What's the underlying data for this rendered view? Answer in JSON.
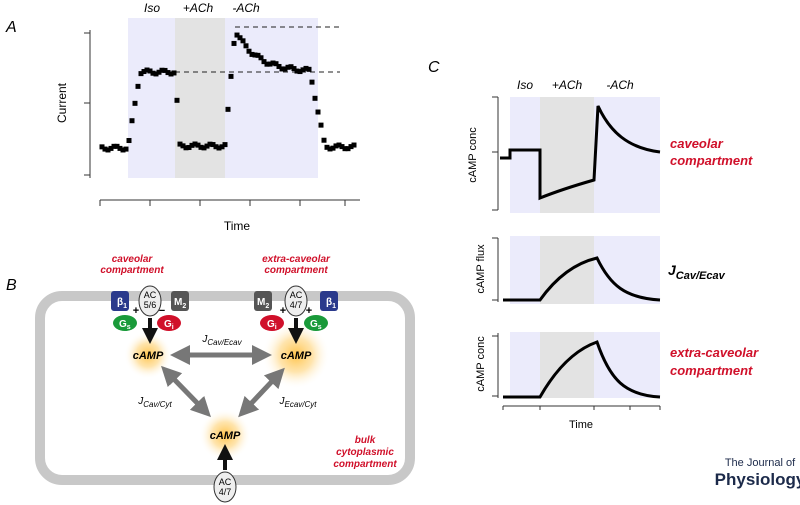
{
  "panel_a": {
    "label": "A",
    "phases": [
      "Iso",
      "+ACh",
      "-ACh"
    ],
    "y_label": "Current",
    "x_label": "Time"
  },
  "panel_b": {
    "label": "B",
    "caveolar": [
      "caveolar",
      "compartment"
    ],
    "extra_caveolar": [
      "extra-caveolar",
      "compartment"
    ],
    "bulk": [
      "bulk",
      "cytoplasmic",
      "compartment"
    ],
    "left_receptors": {
      "beta": {
        "main": "β",
        "sub": "1"
      },
      "ac": [
        "AC",
        "5/6"
      ],
      "m2": {
        "main": "M",
        "sub": "2"
      },
      "gs": {
        "main": "G",
        "sub": "s"
      },
      "gi": {
        "main": "G",
        "sub": "i"
      },
      "signs": [
        "+",
        "−"
      ]
    },
    "right_receptors": {
      "m2": {
        "main": "M",
        "sub": "2"
      },
      "ac": [
        "AC",
        "4/7"
      ],
      "beta": {
        "main": "β",
        "sub": "1"
      },
      "gi": {
        "main": "G",
        "sub": "i"
      },
      "gs": {
        "main": "G",
        "sub": "s"
      },
      "signs": [
        "+",
        "+"
      ]
    },
    "camp_nodes": [
      "cAMP",
      "cAMP",
      "cAMP"
    ],
    "fluxes": [
      {
        "main": "J",
        "sub": "Cav/Ecav"
      },
      {
        "main": "J",
        "sub": "Cav/Cyt"
      },
      {
        "main": "J",
        "sub": "Ecav/Cyt"
      }
    ],
    "bottom_ac": [
      "AC",
      "4/7"
    ]
  },
  "panel_c": {
    "label": "C",
    "phases": [
      "Iso",
      "+ACh",
      "-ACh"
    ],
    "y_labels": [
      "cAMP conc",
      "cAMP flux",
      "cAMP conc"
    ],
    "caveolar": [
      "caveolar",
      "compartment"
    ],
    "flux": {
      "main": "J",
      "sub": "Cav/Ecav"
    },
    "extra_caveolar": [
      "extra-caveolar",
      "compartment"
    ],
    "x_label": "Time"
  },
  "logo": [
    "The Journal of",
    "Physiology"
  ]
}
